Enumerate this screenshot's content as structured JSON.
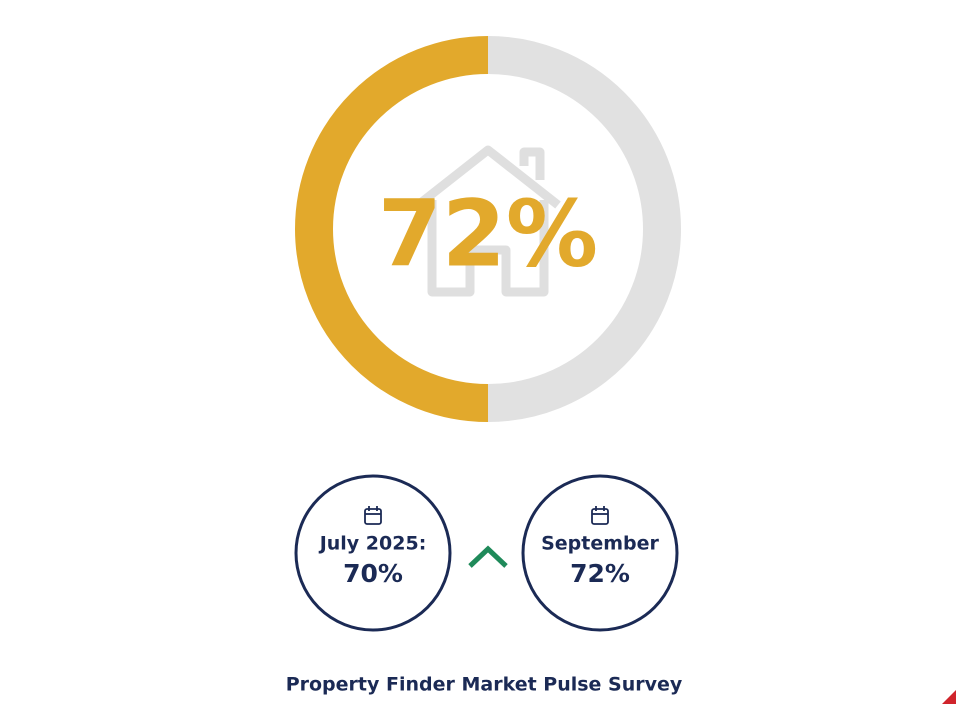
{
  "gauge": {
    "value_label": "72%"
  },
  "comparison": {
    "items": [
      {
        "period": "July 2025:",
        "value": "70%"
      },
      {
        "period": "September",
        "value": "72%"
      }
    ]
  },
  "footer": {
    "source": "Property Finder Market Pulse Survey"
  }
}
